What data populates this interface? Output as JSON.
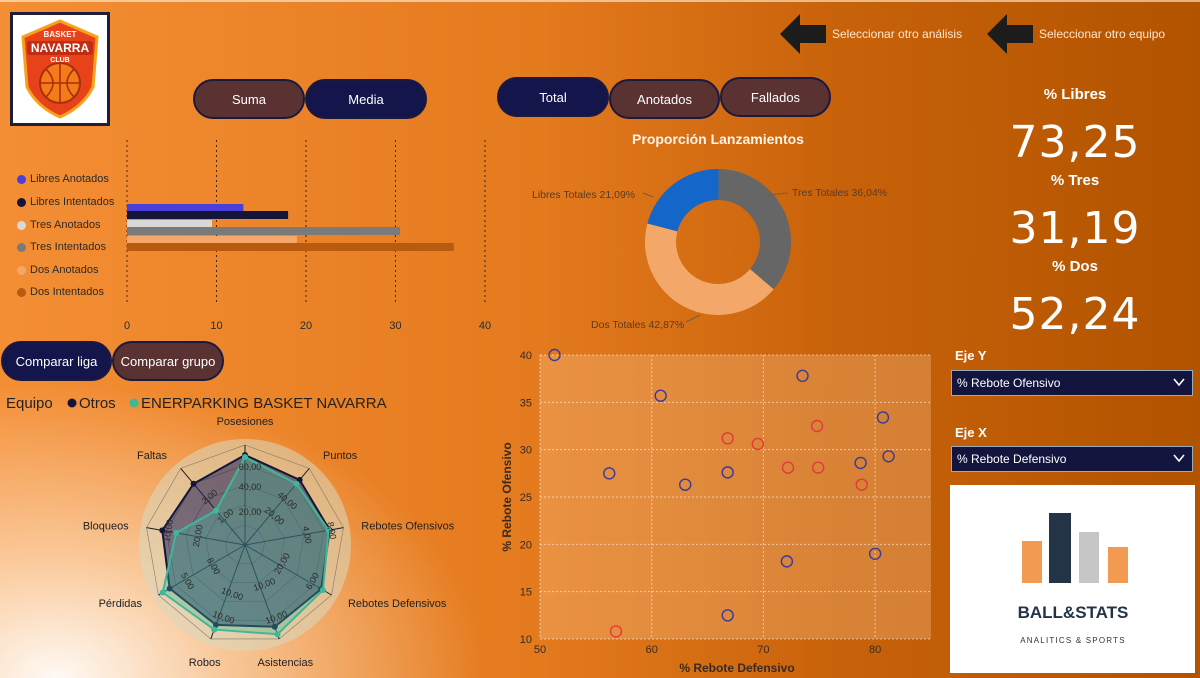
{
  "nav": {
    "other_analysis": "Seleccionar otro análisis",
    "other_team": "Seleccionar otro equipo"
  },
  "logo": {
    "line1": "BASKET",
    "line2": "NAVARRA",
    "line3": "CLUB"
  },
  "toggles_agg": {
    "suma": "Suma",
    "media": "Media"
  },
  "toggles_type": {
    "total": "Total",
    "anotados": "Anotados",
    "fallados": "Fallados"
  },
  "compare": {
    "liga": "Comparar liga",
    "grupo": "Comparar grupo"
  },
  "kpis": {
    "libres_label": "% Libres",
    "libres_value": "73,25",
    "tres_label": "% Tres",
    "tres_value": "31,19",
    "dos_label": "% Dos",
    "dos_value": "52,24"
  },
  "eje_y": {
    "label": "Eje Y",
    "value": "% Rebote Ofensivo"
  },
  "eje_x": {
    "label": "Eje X",
    "value": "% Rebote Defensivo"
  },
  "brand": {
    "name": "BALL&STATS",
    "tagline": "ANALITICS & SPORTS"
  },
  "colors": {
    "libres_anotados": "#4a3fd8",
    "libres_intentados": "#15153a",
    "tres_anotados": "#d8d8d8",
    "tres_intentados": "#7a7a7a",
    "dos_anotados": "#f3a86a",
    "dos_intentados": "#b85a10",
    "otros": "#2a2a5a",
    "team": "#3fb89a",
    "scatter_otros": "#3a3a9a",
    "scatter_team": "#e23a3a"
  },
  "chart_data": [
    {
      "type": "bar",
      "orientation": "horizontal",
      "series": [
        {
          "name": "Libres Anotados",
          "values": [
            13
          ]
        },
        {
          "name": "Libres Intentados",
          "values": [
            18
          ]
        },
        {
          "name": "Tres Anotados",
          "values": [
            9.5
          ]
        },
        {
          "name": "Tres Intentados",
          "values": [
            30.5
          ]
        },
        {
          "name": "Dos Anotados",
          "values": [
            19
          ]
        },
        {
          "name": "Dos Intentados",
          "values": [
            36.5
          ]
        }
      ],
      "xticks": [
        "0",
        "10",
        "20",
        "30",
        "40"
      ],
      "xlim": [
        0,
        40
      ],
      "legend": "left",
      "grid": true
    },
    {
      "type": "pie",
      "variant": "donut",
      "title": "Proporción Lanzamientos",
      "slices": [
        {
          "name": "Tres Totales",
          "value": 36.04,
          "label": "Tres Totales 36,04%",
          "color": "#666666"
        },
        {
          "name": "Dos Totales",
          "value": 42.87,
          "label": "Dos Totales 42,87%",
          "color": "#f3a86a"
        },
        {
          "name": "Libres Totales",
          "value": 21.09,
          "label": "Libres Totales 21,09%",
          "color": "#1467c8"
        }
      ]
    },
    {
      "type": "radar",
      "legend_title": "Equipo",
      "series": [
        {
          "name": "Otros",
          "values": [
            0.9,
            0.85,
            0.86,
            0.88,
            0.87,
            0.85,
            0.87,
            0.84,
            0.8
          ]
        },
        {
          "name": "ENERPARKING BASKET NAVARRA",
          "values": [
            0.88,
            0.8,
            0.85,
            0.9,
            0.95,
            0.9,
            0.95,
            0.7,
            0.45
          ]
        }
      ],
      "axes": [
        "Posesiones",
        "Puntos",
        "Rebotes Ofensivos",
        "Rebotes Defensivos",
        "Asistencias",
        "Robos",
        "Pérdidas",
        "Bloqueos",
        "Faltas"
      ],
      "tick_labels": [
        "60,00",
        "40,00",
        "20,00",
        "40,00",
        "20,00",
        "8,00",
        "4,00",
        "6,00",
        "20,00",
        "10,00",
        "10,00",
        "10,00",
        "10,00",
        "5,00",
        "8,00",
        "10,00",
        "20,00",
        "2,00",
        "1,00",
        "20",
        "10"
      ]
    },
    {
      "type": "scatter",
      "xlabel": "% Rebote Defensivo",
      "ylabel": "% Rebote Ofensivo",
      "xlim": [
        50,
        85
      ],
      "ylim": [
        10,
        40
      ],
      "xticks": [
        "50",
        "60",
        "70",
        "80"
      ],
      "yticks": [
        "10",
        "15",
        "20",
        "25",
        "30",
        "35",
        "40"
      ],
      "series": [
        {
          "name": "Otros",
          "points": [
            [
              51.3,
              40
            ],
            [
              60.8,
              35.7
            ],
            [
              73.5,
              37.8
            ],
            [
              56.2,
              27.5
            ],
            [
              63,
              26.3
            ],
            [
              66.8,
              27.6
            ],
            [
              78.7,
              28.6
            ],
            [
              80.7,
              33.4
            ],
            [
              81.2,
              29.3
            ],
            [
              72.1,
              18.2
            ],
            [
              80,
              19
            ],
            [
              66.8,
              12.5
            ]
          ]
        },
        {
          "name": "ENERPARKING BASKET NAVARRA",
          "points": [
            [
              66.8,
              31.2
            ],
            [
              69.5,
              30.6
            ],
            [
              74.8,
              32.5
            ],
            [
              72.2,
              28.1
            ],
            [
              74.9,
              28.1
            ],
            [
              78.8,
              26.3
            ],
            [
              56.8,
              10.8
            ]
          ]
        }
      ]
    }
  ]
}
